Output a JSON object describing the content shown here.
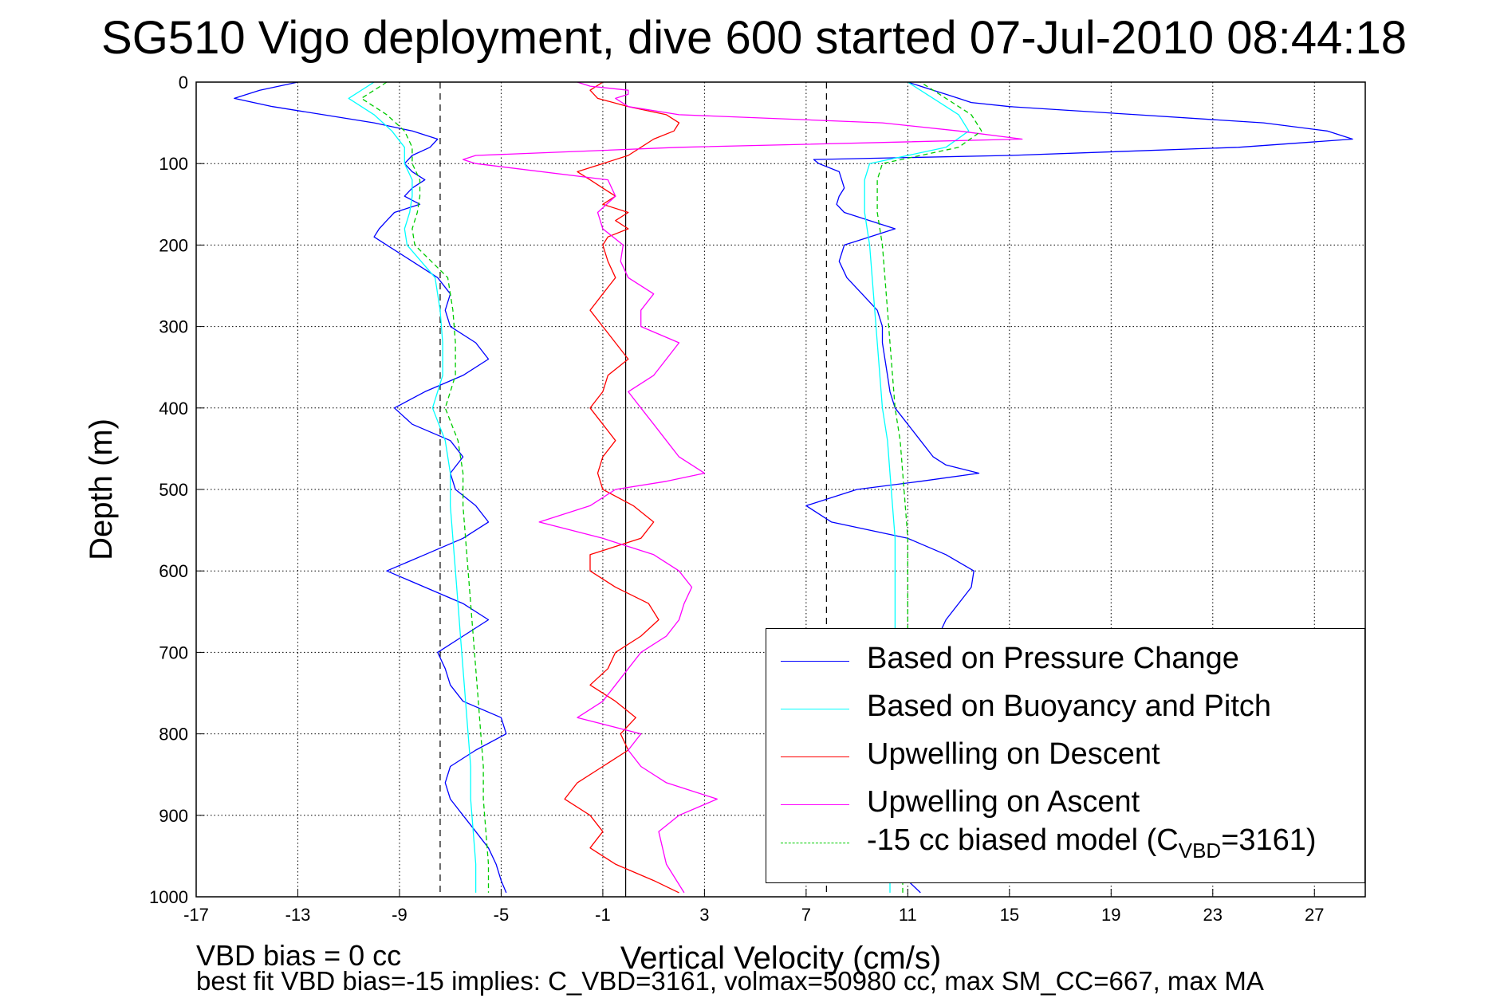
{
  "chart_data": {
    "type": "line",
    "title": "SG510 Vigo deployment, dive 600 started 07-Jul-2010 08:44:18",
    "xlabel": "Vertical Velocity (cm/s)",
    "ylabel": "Depth (m)",
    "xlim": [
      -17,
      29
    ],
    "ylim": [
      0,
      1000
    ],
    "y_reversed": true,
    "x_ticks": [
      "-17",
      "-13",
      "-9",
      "-5",
      "-1",
      "3",
      "7",
      "11",
      "15",
      "19",
      "23",
      "27"
    ],
    "y_ticks": [
      "0",
      "100",
      "200",
      "300",
      "400",
      "500",
      "600",
      "700",
      "800",
      "900",
      "1000"
    ],
    "grid": true,
    "legend_position": "bottom-right",
    "reference_lines": [
      {
        "x": -0.1,
        "style": "solid"
      },
      {
        "x": -7.4,
        "style": "dashed"
      },
      {
        "x": 7.8,
        "style": "dashed"
      }
    ],
    "series": [
      {
        "name": "Based on Pressure Change",
        "color": "#0000ff",
        "style": "solid",
        "descent": {
          "depth": [
            0,
            10,
            20,
            30,
            40,
            50,
            60,
            70,
            80,
            90,
            100,
            110,
            120,
            130,
            140,
            150,
            160,
            170,
            180,
            190,
            200,
            220,
            240,
            260,
            280,
            300,
            320,
            340,
            360,
            380,
            400,
            420,
            440,
            460,
            480,
            500,
            520,
            540,
            560,
            580,
            600,
            620,
            640,
            660,
            680,
            700,
            720,
            740,
            760,
            780,
            800,
            820,
            840,
            860,
            880,
            900,
            920,
            940,
            960,
            980,
            995
          ],
          "v": [
            -13,
            -14.5,
            -15.5,
            -14,
            -12,
            -10,
            -8.5,
            -7.5,
            -7.8,
            -8.5,
            -8.8,
            -8.5,
            -8,
            -8.5,
            -8.8,
            -8.2,
            -9.2,
            -9.5,
            -9.8,
            -10,
            -9.5,
            -8.5,
            -7.5,
            -7,
            -7.2,
            -7,
            -6,
            -5.5,
            -6.5,
            -8,
            -9.2,
            -8.5,
            -7,
            -6.5,
            -7,
            -6.8,
            -6,
            -5.5,
            -6.5,
            -8,
            -9.5,
            -8,
            -6.5,
            -5.5,
            -6.5,
            -7.5,
            -7.2,
            -7,
            -6.5,
            -5,
            -4.8,
            -6,
            -7,
            -7.2,
            -7,
            -6.5,
            -6,
            -5.5,
            -5.2,
            -5,
            -4.8
          ]
        },
        "ascent": {
          "depth": [
            995,
            980,
            960,
            940,
            920,
            900,
            880,
            860,
            840,
            820,
            800,
            780,
            760,
            740,
            720,
            700,
            680,
            660,
            640,
            620,
            600,
            580,
            560,
            540,
            520,
            500,
            490,
            480,
            470,
            460,
            440,
            420,
            400,
            380,
            360,
            340,
            320,
            300,
            280,
            260,
            240,
            220,
            200,
            190,
            180,
            170,
            160,
            150,
            140,
            130,
            120,
            110,
            100,
            95,
            90,
            80,
            70,
            60,
            50,
            40,
            30,
            25,
            20,
            15,
            10,
            5,
            0
          ],
          "v": [
            11.5,
            11,
            10.8,
            10.6,
            10.5,
            10.5,
            10.6,
            10.7,
            10.8,
            10.9,
            11,
            11.2,
            11.3,
            11.5,
            11.7,
            11.9,
            12.2,
            12.5,
            13,
            13.5,
            13.6,
            12.5,
            11,
            8,
            7,
            9,
            11.5,
            13.8,
            12.5,
            12,
            11.5,
            11,
            10.5,
            10.3,
            10.2,
            10.1,
            10,
            10,
            9.8,
            9.2,
            8.6,
            8.3,
            8.5,
            9.5,
            10.5,
            9.5,
            8.5,
            8.2,
            8.3,
            8.5,
            8.4,
            8.3,
            7.5,
            7.3,
            15,
            24,
            28.5,
            27.5,
            25,
            20,
            15,
            13.5,
            13,
            12.5,
            12,
            11.5,
            11
          ]
        }
      },
      {
        "name": "Based on Buoyancy and Pitch",
        "color": "#00ffff",
        "style": "solid",
        "descent": {
          "depth": [
            0,
            20,
            40,
            60,
            80,
            100,
            120,
            140,
            160,
            180,
            200,
            240,
            280,
            320,
            360,
            400,
            440,
            480,
            520,
            560,
            600,
            640,
            680,
            720,
            760,
            800,
            840,
            880,
            920,
            960,
            995
          ],
          "v": [
            -10,
            -11,
            -10,
            -9.3,
            -8.8,
            -8.8,
            -8.5,
            -8.5,
            -8.6,
            -8.8,
            -8.7,
            -7.6,
            -7.4,
            -7.3,
            -7.3,
            -7.7,
            -7.2,
            -7,
            -7,
            -6.9,
            -6.8,
            -6.7,
            -6.6,
            -6.5,
            -6.4,
            -6.3,
            -6.2,
            -6.2,
            -6.1,
            -6,
            -6
          ]
        },
        "ascent": {
          "depth": [
            995,
            960,
            920,
            880,
            840,
            800,
            760,
            720,
            680,
            640,
            600,
            560,
            520,
            480,
            440,
            400,
            360,
            320,
            280,
            240,
            200,
            160,
            120,
            100,
            80,
            60,
            40,
            20,
            0
          ],
          "v": [
            10.3,
            10.3,
            10.3,
            10.3,
            10.4,
            10.4,
            10.4,
            10.5,
            10.5,
            10.5,
            10.5,
            10.5,
            10.4,
            10.3,
            10.2,
            10,
            9.9,
            9.8,
            9.7,
            9.6,
            9.5,
            9.3,
            9.3,
            9.5,
            12.5,
            13.4,
            13,
            12,
            11
          ]
        }
      },
      {
        "name": "Upwelling on Descent",
        "color": "#ff0000",
        "style": "solid",
        "depth": [
          0,
          10,
          20,
          30,
          40,
          50,
          60,
          70,
          80,
          90,
          100,
          110,
          120,
          130,
          140,
          150,
          160,
          170,
          180,
          190,
          200,
          220,
          240,
          260,
          280,
          300,
          320,
          340,
          360,
          380,
          400,
          420,
          440,
          460,
          480,
          500,
          520,
          540,
          560,
          580,
          600,
          620,
          640,
          660,
          680,
          700,
          720,
          740,
          760,
          780,
          800,
          820,
          840,
          860,
          880,
          900,
          920,
          940,
          960,
          980,
          995
        ],
        "v": [
          -1,
          -1.5,
          -1.2,
          0,
          1.5,
          2,
          1.8,
          1,
          0.5,
          0,
          -1,
          -2,
          -1.5,
          -1,
          -0.5,
          -1,
          0,
          -0.5,
          0,
          -0.8,
          -1,
          -0.8,
          -0.5,
          -1,
          -1.5,
          -1,
          -0.5,
          0,
          -0.8,
          -1,
          -1.5,
          -1,
          -0.5,
          -1,
          -1.2,
          -1,
          0.2,
          1,
          0.5,
          -1.5,
          -1.5,
          -0.5,
          0.8,
          1.2,
          0.5,
          -0.5,
          -0.8,
          -1.5,
          -0.5,
          0.3,
          -0.3,
          0,
          -1,
          -2,
          -2.5,
          -1.5,
          -1,
          -1.5,
          -0.5,
          1,
          2
        ]
      },
      {
        "name": "Upwelling on Ascent",
        "color": "#ff00ff",
        "style": "solid",
        "depth": [
          995,
          960,
          920,
          900,
          880,
          860,
          840,
          820,
          800,
          780,
          760,
          740,
          720,
          700,
          680,
          660,
          640,
          620,
          600,
          580,
          560,
          540,
          520,
          500,
          490,
          480,
          470,
          460,
          440,
          420,
          400,
          380,
          360,
          340,
          320,
          300,
          280,
          260,
          240,
          220,
          200,
          180,
          160,
          140,
          120,
          100,
          95,
          90,
          80,
          70,
          60,
          50,
          40,
          30,
          20,
          15,
          10,
          5,
          0
        ],
        "v": [
          2.2,
          1.5,
          1.2,
          2,
          3.5,
          1.5,
          0.5,
          0,
          0.5,
          -2,
          -1,
          -0.5,
          0,
          0.5,
          1.5,
          2,
          2.2,
          2.5,
          2,
          1,
          -1,
          -3.5,
          -1.5,
          -0.5,
          1.5,
          3,
          2.5,
          2,
          1.5,
          1,
          0.5,
          0,
          1,
          1.5,
          2,
          0.5,
          0.5,
          1,
          0,
          -0.3,
          -0.2,
          -1,
          -1.2,
          -0.5,
          -0.8,
          -6,
          -6.5,
          -6,
          2,
          15.5,
          13,
          10,
          2,
          0,
          -0.5,
          0,
          0,
          -1.5,
          -2
        ]
      },
      {
        "name": "-15 cc biased model (C_VBD=3161)",
        "color": "#00cc00",
        "style": "dashed",
        "descent": {
          "depth": [
            0,
            20,
            40,
            60,
            80,
            100,
            120,
            140,
            160,
            180,
            200,
            240,
            280,
            320,
            360,
            400,
            440,
            480,
            520,
            560,
            600,
            640,
            680,
            720,
            760,
            800,
            840,
            880,
            920,
            960,
            995
          ],
          "v": [
            -9.5,
            -10.5,
            -9.5,
            -8.8,
            -8.5,
            -8.5,
            -8.2,
            -8.2,
            -8.3,
            -8.5,
            -8.4,
            -7.1,
            -6.9,
            -6.8,
            -6.8,
            -7.2,
            -6.7,
            -6.5,
            -6.5,
            -6.4,
            -6.3,
            -6.2,
            -6.1,
            -6,
            -5.9,
            -5.8,
            -5.7,
            -5.7,
            -5.6,
            -5.5,
            -5.5
          ]
        },
        "ascent": {
          "depth": [
            995,
            960,
            920,
            880,
            840,
            800,
            760,
            720,
            680,
            640,
            600,
            560,
            520,
            480,
            440,
            400,
            360,
            320,
            280,
            240,
            200,
            160,
            120,
            100,
            80,
            60,
            40,
            20,
            0
          ],
          "v": [
            10.8,
            10.8,
            10.8,
            10.8,
            10.9,
            10.9,
            10.9,
            11,
            11,
            11,
            11,
            11,
            10.9,
            10.8,
            10.7,
            10.5,
            10.4,
            10.3,
            10.2,
            10.1,
            10,
            9.8,
            9.8,
            10,
            13,
            13.9,
            13.5,
            12.5,
            11.5
          ]
        }
      }
    ]
  },
  "legend": {
    "entries": [
      {
        "label": "Based on Pressure Change",
        "color": "#0000ff",
        "style": "solid"
      },
      {
        "label": "Based on Buoyancy and Pitch",
        "color": "#00ffff",
        "style": "solid"
      },
      {
        "label": "Upwelling on Descent",
        "color": "#ff0000",
        "style": "solid"
      },
      {
        "label": "Upwelling on Ascent",
        "color": "#ff00ff",
        "style": "solid"
      }
    ],
    "model_entry": {
      "prefix": "-15 cc biased model (C",
      "subscript": "VBD",
      "suffix": "=3161)",
      "color": "#00cc00",
      "style": "dashed"
    }
  },
  "footer": {
    "bias_text": "VBD bias = 0 cc",
    "fit_text": "best fit VBD bias=-15 implies: C_VBD=3161, volmax=50980 cc, max SM_CC=667, max MA"
  }
}
